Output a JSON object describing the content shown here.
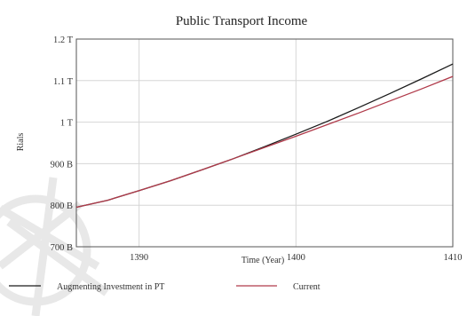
{
  "chart_data": {
    "type": "line",
    "title": "Public Transport Income",
    "xlabel": "Time (Year)",
    "ylabel": "Rials",
    "xlim": [
      1386,
      1410
    ],
    "ylim": [
      700000000000,
      1200000000000
    ],
    "x_ticks": [
      {
        "value": 1390,
        "label": "1390"
      },
      {
        "value": 1400,
        "label": "1400"
      },
      {
        "value": 1410,
        "label": "1410"
      }
    ],
    "y_ticks": [
      {
        "value": 700000000000,
        "label": "700 B"
      },
      {
        "value": 800000000000,
        "label": "800 B"
      },
      {
        "value": 900000000000,
        "label": "900 B"
      },
      {
        "value": 1000000000000,
        "label": "1 T"
      },
      {
        "value": 1100000000000,
        "label": "1.1 T"
      },
      {
        "value": 1200000000000,
        "label": "1.2 T"
      }
    ],
    "grid": true,
    "legend": "bottom",
    "x": [
      1386,
      1388,
      1390,
      1392,
      1394,
      1396,
      1398,
      1400,
      1402,
      1404,
      1406,
      1408,
      1410
    ],
    "series": [
      {
        "name": "Augmenting Investment in PT",
        "color": "#1a1a1a",
        "values": [
          795000000000,
          812000000000,
          835000000000,
          859000000000,
          885000000000,
          912000000000,
          941000000000,
          971000000000,
          1002000000000,
          1035000000000,
          1069000000000,
          1104000000000,
          1140000000000
        ]
      },
      {
        "name": "Current",
        "color": "#b03a4a",
        "values": [
          795000000000,
          812000000000,
          835000000000,
          859000000000,
          885000000000,
          912000000000,
          939000000000,
          966000000000,
          994000000000,
          1022000000000,
          1051000000000,
          1080000000000,
          1110000000000
        ]
      }
    ]
  }
}
